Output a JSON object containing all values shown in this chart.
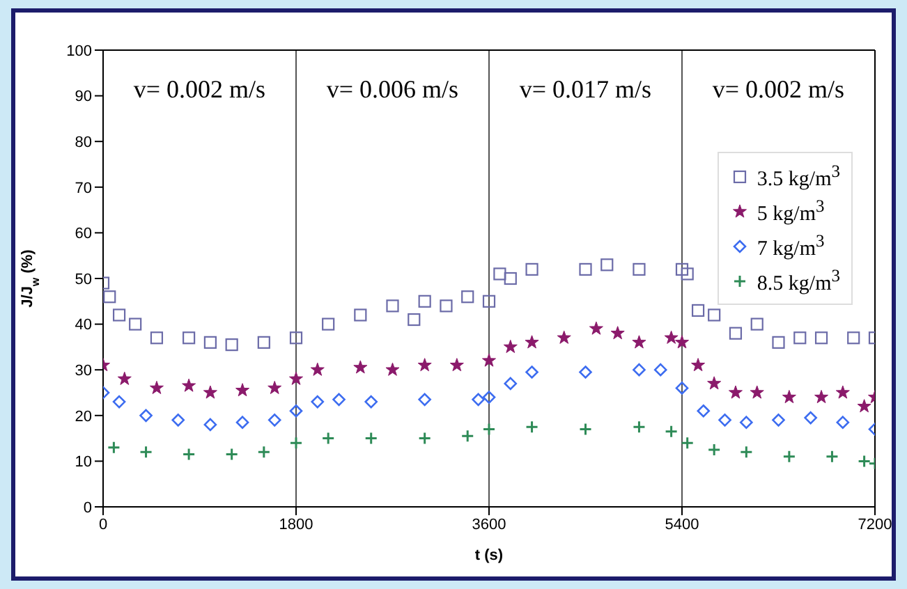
{
  "chart_data": {
    "type": "scatter",
    "xlabel": "t (s)",
    "ylabel": "J/J$_{w}$ (%)",
    "xlim": [
      0,
      7200
    ],
    "xticks": [
      0,
      1800,
      3600,
      5400,
      7200
    ],
    "ylim": [
      0,
      100
    ],
    "yticks": [
      0,
      10,
      20,
      30,
      40,
      50,
      60,
      70,
      80,
      90,
      100
    ],
    "legend": "top right",
    "annotations": [
      "v= 0.002 m/s",
      "v= 0.006 m/s",
      "v= 0.017 m/s",
      "v= 0.002 m/s"
    ],
    "ref_lines": [
      {
        "axis": "x",
        "value": 1800,
        "color": "#555555"
      },
      {
        "axis": "x",
        "value": 3600,
        "color": "#555555"
      },
      {
        "axis": "x",
        "value": 5400,
        "color": "#555555"
      }
    ],
    "series": [
      {
        "name": "3.5 kg/m$^{3}$",
        "color": "#6b6ba8",
        "marker": "square",
        "x": [
          0,
          60,
          150,
          300,
          500,
          800,
          1000,
          1200,
          1500,
          1800,
          2100,
          2400,
          2700,
          2900,
          3000,
          3200,
          3400,
          3600,
          3700,
          3800,
          4000,
          4500,
          4700,
          5000,
          5400,
          5450,
          5550,
          5700,
          5900,
          6100,
          6300,
          6500,
          6700,
          7000,
          7200
        ],
        "values": [
          49,
          46,
          42,
          40,
          37,
          37,
          36,
          35.5,
          36,
          37,
          40,
          42,
          44,
          41,
          45,
          44,
          46,
          45,
          51,
          50,
          52,
          52,
          53,
          52,
          52,
          51,
          43,
          42,
          38,
          40,
          36,
          37,
          37,
          37,
          37
        ]
      },
      {
        "name": "5 kg/m$^{3}$",
        "color": "#8b1a6b",
        "marker": "star",
        "x": [
          0,
          200,
          500,
          800,
          1000,
          1300,
          1600,
          1800,
          2000,
          2400,
          2700,
          3000,
          3300,
          3600,
          3800,
          4000,
          4300,
          4600,
          4800,
          5000,
          5300,
          5400,
          5550,
          5700,
          5900,
          6100,
          6400,
          6700,
          6900,
          7100,
          7200
        ],
        "values": [
          31,
          28,
          26,
          26.5,
          25,
          25.5,
          26,
          28,
          30,
          30.5,
          30,
          31,
          31,
          32,
          35,
          36,
          37,
          39,
          38,
          36,
          37,
          36,
          31,
          27,
          25,
          25,
          24,
          24,
          25,
          22,
          24
        ]
      },
      {
        "name": "7 kg/m$^{3}$",
        "color": "#3c6cf0",
        "marker": "diamond",
        "x": [
          0,
          150,
          400,
          700,
          1000,
          1300,
          1600,
          1800,
          2000,
          2200,
          2500,
          3000,
          3500,
          3600,
          3800,
          4000,
          4500,
          5000,
          5200,
          5400,
          5600,
          5800,
          6000,
          6300,
          6600,
          6900,
          7200
        ],
        "values": [
          25,
          23,
          20,
          19,
          18,
          18.5,
          19,
          21,
          23,
          23.5,
          23,
          23.5,
          23.5,
          24,
          27,
          29.5,
          29.5,
          30,
          30,
          26,
          21,
          19,
          18.5,
          19,
          19.5,
          18.5,
          17
        ]
      },
      {
        "name": "8.5 kg/m$^{3}$",
        "color": "#2e8b57",
        "marker": "cross",
        "x": [
          100,
          400,
          800,
          1200,
          1500,
          1800,
          2100,
          2500,
          3000,
          3400,
          3600,
          4000,
          4500,
          5000,
          5300,
          5450,
          5700,
          6000,
          6400,
          6800,
          7100,
          7200
        ],
        "values": [
          13,
          12,
          11.5,
          11.5,
          12,
          14,
          15,
          15,
          15,
          15.5,
          17,
          17.5,
          17,
          17.5,
          16.5,
          14,
          12.5,
          12,
          11,
          11,
          10,
          9.5
        ]
      }
    ]
  }
}
